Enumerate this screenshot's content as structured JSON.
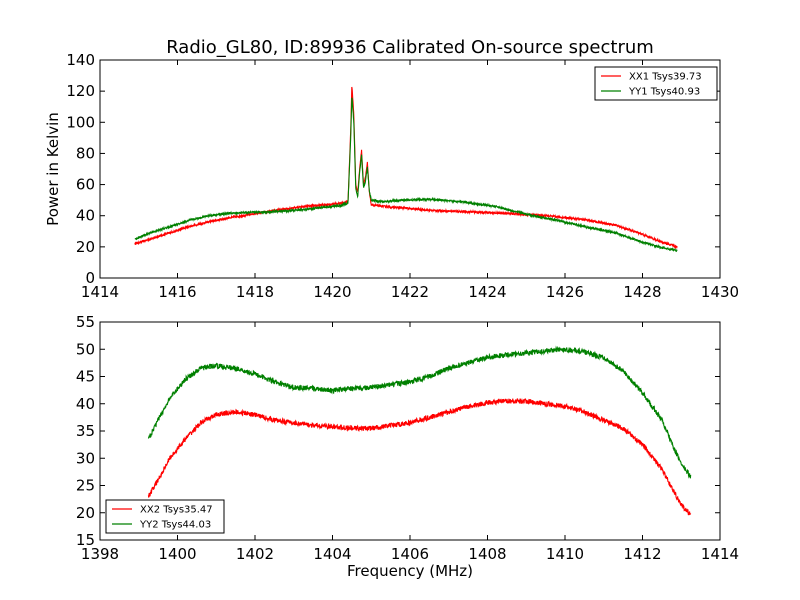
{
  "title": "Radio_GL80, ID:89936 Calibrated On-source spectrum",
  "colors": {
    "xx": "#ff0000",
    "yy": "#008000"
  },
  "chart_data": [
    {
      "type": "line",
      "xlim": [
        1414,
        1430
      ],
      "ylim": [
        0,
        140
      ],
      "xticks": [
        1414,
        1416,
        1418,
        1420,
        1422,
        1424,
        1426,
        1428,
        1430
      ],
      "yticks": [
        0,
        20,
        40,
        60,
        80,
        100,
        120,
        140
      ],
      "xticklabels": [
        "1414",
        "1416",
        "1418",
        "1420",
        "1422",
        "1424",
        "1426",
        "1428",
        "1430"
      ],
      "yticklabels": [
        "0",
        "20",
        "40",
        "60",
        "80",
        "100",
        "120",
        "140"
      ],
      "xlabel": "",
      "ylabel": "Power in Kelvin",
      "legend": "top-right",
      "series": [
        {
          "name": "XX1 Tsys39.73",
          "color": "#ff0000",
          "points": [
            [
              1414.9,
              22
            ],
            [
              1415.3,
              25
            ],
            [
              1415.8,
              29
            ],
            [
              1416.3,
              33
            ],
            [
              1416.8,
              36
            ],
            [
              1417.3,
              38.5
            ],
            [
              1417.8,
              40.5
            ],
            [
              1418.3,
              42.5
            ],
            [
              1418.8,
              44.5
            ],
            [
              1419.3,
              46
            ],
            [
              1419.8,
              47
            ],
            [
              1420.2,
              48
            ],
            [
              1420.4,
              49
            ],
            [
              1420.47,
              95
            ],
            [
              1420.5,
              124
            ],
            [
              1420.55,
              105
            ],
            [
              1420.6,
              60
            ],
            [
              1420.65,
              55
            ],
            [
              1420.7,
              70
            ],
            [
              1420.75,
              82
            ],
            [
              1420.8,
              60
            ],
            [
              1420.85,
              65
            ],
            [
              1420.9,
              74
            ],
            [
              1420.95,
              55
            ],
            [
              1421.0,
              47
            ],
            [
              1421.3,
              46
            ],
            [
              1421.8,
              45
            ],
            [
              1422.5,
              43.5
            ],
            [
              1423.5,
              42.5
            ],
            [
              1424.5,
              41.5
            ],
            [
              1425.5,
              40
            ],
            [
              1426.5,
              37.5
            ],
            [
              1427.3,
              34
            ],
            [
              1428.0,
              28
            ],
            [
              1428.5,
              23
            ],
            [
              1428.9,
              20
            ]
          ]
        },
        {
          "name": "YY1 Tsys40.93",
          "color": "#008000",
          "points": [
            [
              1414.9,
              25
            ],
            [
              1415.3,
              29
            ],
            [
              1415.8,
              33
            ],
            [
              1416.3,
              37
            ],
            [
              1416.8,
              40
            ],
            [
              1417.3,
              41.5
            ],
            [
              1417.8,
              42
            ],
            [
              1418.3,
              42.5
            ],
            [
              1418.8,
              43
            ],
            [
              1419.3,
              44
            ],
            [
              1419.8,
              45.5
            ],
            [
              1420.2,
              46.5
            ],
            [
              1420.4,
              48
            ],
            [
              1420.47,
              90
            ],
            [
              1420.5,
              117
            ],
            [
              1420.55,
              100
            ],
            [
              1420.6,
              58
            ],
            [
              1420.65,
              52
            ],
            [
              1420.7,
              68
            ],
            [
              1420.75,
              79
            ],
            [
              1420.8,
              58
            ],
            [
              1420.85,
              62
            ],
            [
              1420.9,
              71
            ],
            [
              1420.95,
              56
            ],
            [
              1421.0,
              50
            ],
            [
              1421.3,
              49
            ],
            [
              1421.8,
              50
            ],
            [
              1422.5,
              50.5
            ],
            [
              1423.3,
              49
            ],
            [
              1424.2,
              46
            ],
            [
              1425.0,
              41
            ],
            [
              1425.8,
              37
            ],
            [
              1426.5,
              33
            ],
            [
              1427.3,
              29
            ],
            [
              1428.0,
              23
            ],
            [
              1428.5,
              19.5
            ],
            [
              1428.9,
              17.5
            ]
          ]
        }
      ]
    },
    {
      "type": "line",
      "xlim": [
        1398,
        1414
      ],
      "ylim": [
        15,
        55
      ],
      "xticks": [
        1398,
        1400,
        1402,
        1404,
        1406,
        1408,
        1410,
        1412,
        1414
      ],
      "yticks": [
        15,
        20,
        25,
        30,
        35,
        40,
        45,
        50,
        55
      ],
      "xticklabels": [
        "1398",
        "1400",
        "1402",
        "1404",
        "1406",
        "1408",
        "1410",
        "1412",
        "1414"
      ],
      "yticklabels": [
        "15",
        "20",
        "25",
        "30",
        "35",
        "40",
        "45",
        "50",
        "55"
      ],
      "xlabel": "Frequency (MHz)",
      "ylabel": "",
      "legend": "bottom-left",
      "series": [
        {
          "name": "XX2 Tsys35.47",
          "color": "#ff0000",
          "points": [
            [
              1399.25,
              23
            ],
            [
              1399.5,
              26
            ],
            [
              1399.8,
              30
            ],
            [
              1400.2,
              33.5
            ],
            [
              1400.6,
              36.5
            ],
            [
              1401.0,
              38
            ],
            [
              1401.5,
              38.5
            ],
            [
              1402.0,
              38
            ],
            [
              1402.5,
              37
            ],
            [
              1403.0,
              36.5
            ],
            [
              1403.5,
              36
            ],
            [
              1404.0,
              35.8
            ],
            [
              1404.5,
              35.5
            ],
            [
              1405.0,
              35.5
            ],
            [
              1405.5,
              36
            ],
            [
              1406.0,
              36.5
            ],
            [
              1406.5,
              37.5
            ],
            [
              1407.0,
              38.5
            ],
            [
              1407.5,
              39.5
            ],
            [
              1408.0,
              40.2
            ],
            [
              1408.5,
              40.5
            ],
            [
              1409.0,
              40.5
            ],
            [
              1409.5,
              40
            ],
            [
              1410.0,
              39.5
            ],
            [
              1410.5,
              38.5
            ],
            [
              1411.0,
              37
            ],
            [
              1411.5,
              35.5
            ],
            [
              1412.0,
              32.5
            ],
            [
              1412.5,
              28
            ],
            [
              1412.8,
              24
            ],
            [
              1413.0,
              21.5
            ],
            [
              1413.25,
              19.5
            ]
          ]
        },
        {
          "name": "YY2 Tsys44.03",
          "color": "#008000",
          "points": [
            [
              1399.25,
              33.5
            ],
            [
              1399.5,
              37
            ],
            [
              1399.8,
              41
            ],
            [
              1400.2,
              44.5
            ],
            [
              1400.6,
              46.5
            ],
            [
              1401.0,
              47
            ],
            [
              1401.5,
              46.5
            ],
            [
              1402.0,
              45.5
            ],
            [
              1402.5,
              44
            ],
            [
              1403.0,
              43
            ],
            [
              1403.5,
              42.8
            ],
            [
              1404.0,
              42.5
            ],
            [
              1404.5,
              42.8
            ],
            [
              1405.0,
              43
            ],
            [
              1405.5,
              43.5
            ],
            [
              1406.0,
              44
            ],
            [
              1406.5,
              45
            ],
            [
              1407.0,
              46.5
            ],
            [
              1407.5,
              47.5
            ],
            [
              1408.0,
              48.5
            ],
            [
              1408.5,
              49
            ],
            [
              1409.0,
              49.3
            ],
            [
              1409.5,
              49.7
            ],
            [
              1410.0,
              50
            ],
            [
              1410.5,
              49.5
            ],
            [
              1411.0,
              48.5
            ],
            [
              1411.5,
              46
            ],
            [
              1412.0,
              42
            ],
            [
              1412.5,
              37
            ],
            [
              1412.8,
              32
            ],
            [
              1413.0,
              29
            ],
            [
              1413.25,
              26.5
            ]
          ]
        }
      ]
    }
  ]
}
